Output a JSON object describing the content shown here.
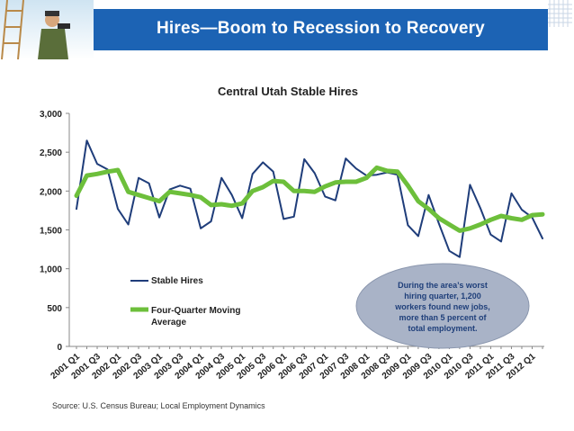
{
  "header": {
    "title": "Hires—Boom to Recession to Recovery"
  },
  "colors": {
    "title_bar": "#1c63b4",
    "stable_hires": "#1f3d7a",
    "moving_avg": "#6dbf3b",
    "callout_fill": "#a9b3c7"
  },
  "source": "Source: U.S. Census Bureau; Local Employment Dynamics",
  "chart_data": {
    "type": "line",
    "title": "Central Utah Stable Hires",
    "xlabel": "",
    "ylabel": "",
    "ylim": [
      0,
      3000
    ],
    "yticks": [
      0,
      500,
      1000,
      1500,
      2000,
      2500,
      3000
    ],
    "ytick_labels": [
      "0",
      "500",
      "1,000",
      "1,500",
      "2,000",
      "2,500",
      "3,000"
    ],
    "xtick_labels": [
      "2001 Q1",
      "2001 Q3",
      "2002 Q1",
      "2002 Q3",
      "2003 Q1",
      "2003 Q3",
      "2004 Q1",
      "2004 Q3",
      "2005 Q1",
      "2005 Q3",
      "2006 Q1",
      "2006 Q3",
      "2007 Q1",
      "2007 Q3",
      "2008 Q1",
      "2008 Q3",
      "2009 Q1",
      "2009 Q3",
      "2010 Q1",
      "2010 Q3",
      "2011 Q1",
      "2011 Q3",
      "2012 Q1"
    ],
    "series": [
      {
        "name": "Stable Hires",
        "values": [
          1770,
          2650,
          2350,
          2280,
          1770,
          1570,
          2170,
          2100,
          1660,
          2020,
          2070,
          2030,
          1520,
          1610,
          2170,
          1950,
          1650,
          2220,
          2370,
          2250,
          1640,
          1670,
          2410,
          2230,
          1930,
          1880,
          2420,
          2290,
          2200,
          2210,
          2240,
          2210,
          1560,
          1420,
          1950,
          1580,
          1230,
          1150,
          2080,
          1780,
          1440,
          1350,
          1970,
          1760,
          1660,
          1390
        ]
      },
      {
        "name": "Four-Quarter Moving Average",
        "values": [
          1940,
          2200,
          2220,
          2250,
          2270,
          1990,
          1950,
          1910,
          1870,
          1990,
          1970,
          1950,
          1920,
          1820,
          1830,
          1810,
          1840,
          2000,
          2050,
          2130,
          2120,
          2000,
          2000,
          1990,
          2060,
          2110,
          2120,
          2120,
          2170,
          2300,
          2260,
          2250,
          2070,
          1870,
          1770,
          1650,
          1570,
          1490,
          1520,
          1570,
          1630,
          1680,
          1650,
          1630,
          1690,
          1700
        ]
      }
    ],
    "legend": {
      "entries": [
        "Stable Hires",
        "Four-Quarter Moving",
        "Average"
      ],
      "placement": "middle-left"
    },
    "annotation": [
      "During the area’s worst",
      "hiring quarter, 1,200",
      "workers found new jobs,",
      "more than 5 percent of",
      "total employment."
    ]
  }
}
